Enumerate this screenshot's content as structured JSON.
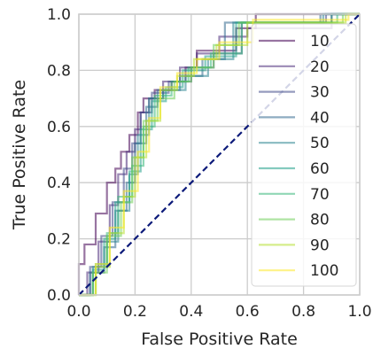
{
  "chart_data": {
    "type": "line",
    "title": "",
    "xlabel": "False Positive Rate",
    "ylabel": "True Positive Rate",
    "xlim": [
      0.0,
      1.0
    ],
    "ylim": [
      0.0,
      1.0
    ],
    "xticks": [
      "0.0",
      "0.2",
      "0.4",
      "0.6",
      "0.8",
      "1.0"
    ],
    "yticks": [
      "0.0",
      "0.2",
      "0.4",
      "0.6",
      "0.8",
      "1.0"
    ],
    "grid": true,
    "legend_position": "upper-right",
    "colors": {
      "diagonal": "#0d1b7a",
      "grid": "#cccccc"
    },
    "diagonal": {
      "x": [
        0.0,
        1.0
      ],
      "y": [
        0.0,
        1.0
      ],
      "style": "dashed"
    },
    "series": [
      {
        "name": "10",
        "color": "#440154",
        "x": [
          0.0,
          0.0,
          0.02,
          0.02,
          0.06,
          0.06,
          0.1,
          0.1,
          0.13,
          0.13,
          0.15,
          0.15,
          0.18,
          0.18,
          0.21,
          0.21,
          0.23,
          0.23,
          0.27,
          0.27,
          0.33,
          0.33,
          0.38,
          0.38,
          0.42,
          0.42,
          0.56,
          0.56,
          0.63,
          0.63,
          1.0
        ],
        "y": [
          0.0,
          0.11,
          0.11,
          0.18,
          0.18,
          0.29,
          0.29,
          0.4,
          0.4,
          0.45,
          0.45,
          0.51,
          0.51,
          0.57,
          0.57,
          0.65,
          0.65,
          0.7,
          0.7,
          0.73,
          0.73,
          0.76,
          0.76,
          0.81,
          0.81,
          0.87,
          0.87,
          0.95,
          0.95,
          1.0,
          1.0
        ]
      },
      {
        "name": "20",
        "color": "#482878",
        "x": [
          0.0,
          0.03,
          0.03,
          0.07,
          0.07,
          0.11,
          0.11,
          0.14,
          0.14,
          0.17,
          0.17,
          0.2,
          0.2,
          0.22,
          0.22,
          0.25,
          0.25,
          0.3,
          0.3,
          0.36,
          0.36,
          0.42,
          0.42,
          0.5,
          0.5,
          0.6,
          0.6,
          0.9,
          0.9,
          1.0
        ],
        "y": [
          0.0,
          0.0,
          0.08,
          0.08,
          0.19,
          0.19,
          0.32,
          0.32,
          0.43,
          0.43,
          0.51,
          0.51,
          0.59,
          0.59,
          0.65,
          0.65,
          0.7,
          0.7,
          0.76,
          0.76,
          0.81,
          0.81,
          0.86,
          0.86,
          0.92,
          0.92,
          0.95,
          0.95,
          1.0,
          1.0
        ]
      },
      {
        "name": "30",
        "color": "#3e4989",
        "x": [
          0.0,
          0.04,
          0.04,
          0.08,
          0.08,
          0.12,
          0.12,
          0.16,
          0.16,
          0.19,
          0.19,
          0.22,
          0.22,
          0.26,
          0.26,
          0.32,
          0.32,
          0.4,
          0.4,
          0.48,
          0.48,
          0.58,
          0.58,
          0.88,
          0.88,
          1.0
        ],
        "y": [
          0.0,
          0.0,
          0.1,
          0.1,
          0.21,
          0.21,
          0.33,
          0.33,
          0.45,
          0.45,
          0.54,
          0.54,
          0.65,
          0.65,
          0.72,
          0.72,
          0.76,
          0.76,
          0.81,
          0.81,
          0.86,
          0.86,
          0.97,
          0.97,
          1.0,
          1.0
        ]
      },
      {
        "name": "40",
        "color": "#31688e",
        "x": [
          0.0,
          0.04,
          0.04,
          0.09,
          0.09,
          0.13,
          0.13,
          0.17,
          0.17,
          0.2,
          0.2,
          0.24,
          0.24,
          0.28,
          0.28,
          0.36,
          0.36,
          0.44,
          0.44,
          0.52,
          0.52,
          0.86,
          0.86,
          1.0
        ],
        "y": [
          0.0,
          0.0,
          0.08,
          0.08,
          0.17,
          0.17,
          0.3,
          0.3,
          0.4,
          0.4,
          0.54,
          0.54,
          0.67,
          0.67,
          0.73,
          0.73,
          0.78,
          0.78,
          0.84,
          0.84,
          0.97,
          0.97,
          1.0,
          1.0
        ]
      },
      {
        "name": "50",
        "color": "#26828e",
        "x": [
          0.0,
          0.05,
          0.05,
          0.1,
          0.1,
          0.14,
          0.14,
          0.18,
          0.18,
          0.21,
          0.21,
          0.25,
          0.25,
          0.3,
          0.3,
          0.38,
          0.38,
          0.46,
          0.46,
          0.55,
          0.55,
          0.87,
          0.87,
          1.0
        ],
        "y": [
          0.0,
          0.0,
          0.1,
          0.1,
          0.19,
          0.19,
          0.3,
          0.3,
          0.43,
          0.43,
          0.57,
          0.57,
          0.7,
          0.7,
          0.73,
          0.73,
          0.78,
          0.78,
          0.84,
          0.84,
          0.97,
          0.97,
          1.0,
          1.0
        ]
      },
      {
        "name": "60",
        "color": "#1f9e89",
        "x": [
          0.0,
          0.05,
          0.05,
          0.09,
          0.09,
          0.13,
          0.13,
          0.18,
          0.18,
          0.22,
          0.22,
          0.26,
          0.26,
          0.31,
          0.31,
          0.37,
          0.37,
          0.45,
          0.45,
          0.56,
          0.56,
          0.9,
          0.9,
          1.0
        ],
        "y": [
          0.0,
          0.0,
          0.09,
          0.09,
          0.2,
          0.2,
          0.33,
          0.33,
          0.44,
          0.44,
          0.59,
          0.59,
          0.69,
          0.69,
          0.74,
          0.74,
          0.8,
          0.8,
          0.85,
          0.85,
          0.97,
          0.97,
          1.0,
          1.0
        ]
      },
      {
        "name": "70",
        "color": "#35b779",
        "x": [
          0.0,
          0.06,
          0.06,
          0.1,
          0.1,
          0.14,
          0.14,
          0.19,
          0.19,
          0.23,
          0.23,
          0.27,
          0.27,
          0.33,
          0.33,
          0.39,
          0.39,
          0.47,
          0.47,
          0.58,
          0.58,
          0.92,
          0.92,
          1.0
        ],
        "y": [
          0.0,
          0.0,
          0.11,
          0.11,
          0.22,
          0.22,
          0.35,
          0.35,
          0.46,
          0.46,
          0.6,
          0.6,
          0.71,
          0.71,
          0.76,
          0.76,
          0.81,
          0.81,
          0.86,
          0.86,
          0.97,
          0.97,
          1.0,
          1.0
        ]
      },
      {
        "name": "80",
        "color": "#6ece58",
        "x": [
          0.0,
          0.05,
          0.05,
          0.1,
          0.1,
          0.15,
          0.15,
          0.19,
          0.19,
          0.23,
          0.23,
          0.28,
          0.28,
          0.34,
          0.34,
          0.4,
          0.4,
          0.48,
          0.48,
          0.57,
          0.57,
          0.94,
          0.94,
          1.0
        ],
        "y": [
          0.0,
          0.0,
          0.08,
          0.08,
          0.21,
          0.21,
          0.33,
          0.33,
          0.49,
          0.49,
          0.62,
          0.62,
          0.7,
          0.7,
          0.76,
          0.76,
          0.81,
          0.81,
          0.89,
          0.89,
          0.97,
          0.97,
          1.0,
          1.0
        ]
      },
      {
        "name": "90",
        "color": "#b5de2b",
        "x": [
          0.0,
          0.06,
          0.06,
          0.11,
          0.11,
          0.16,
          0.16,
          0.2,
          0.2,
          0.24,
          0.24,
          0.29,
          0.29,
          0.35,
          0.35,
          0.41,
          0.41,
          0.49,
          0.49,
          0.6,
          0.6,
          0.95,
          0.95,
          1.0
        ],
        "y": [
          0.0,
          0.0,
          0.1,
          0.1,
          0.22,
          0.22,
          0.35,
          0.35,
          0.49,
          0.49,
          0.62,
          0.62,
          0.73,
          0.73,
          0.78,
          0.78,
          0.84,
          0.84,
          0.89,
          0.89,
          0.97,
          0.97,
          1.0,
          1.0
        ]
      },
      {
        "name": "100",
        "color": "#fde725",
        "x": [
          0.0,
          0.06,
          0.06,
          0.11,
          0.11,
          0.16,
          0.16,
          0.21,
          0.21,
          0.25,
          0.25,
          0.29,
          0.29,
          0.35,
          0.35,
          0.42,
          0.42,
          0.5,
          0.5,
          0.62,
          0.62,
          0.96,
          0.96,
          1.0
        ],
        "y": [
          0.0,
          0.0,
          0.11,
          0.11,
          0.24,
          0.24,
          0.37,
          0.37,
          0.51,
          0.51,
          0.63,
          0.63,
          0.74,
          0.74,
          0.79,
          0.79,
          0.84,
          0.84,
          0.9,
          0.9,
          0.98,
          0.98,
          1.0,
          1.0
        ]
      }
    ]
  }
}
